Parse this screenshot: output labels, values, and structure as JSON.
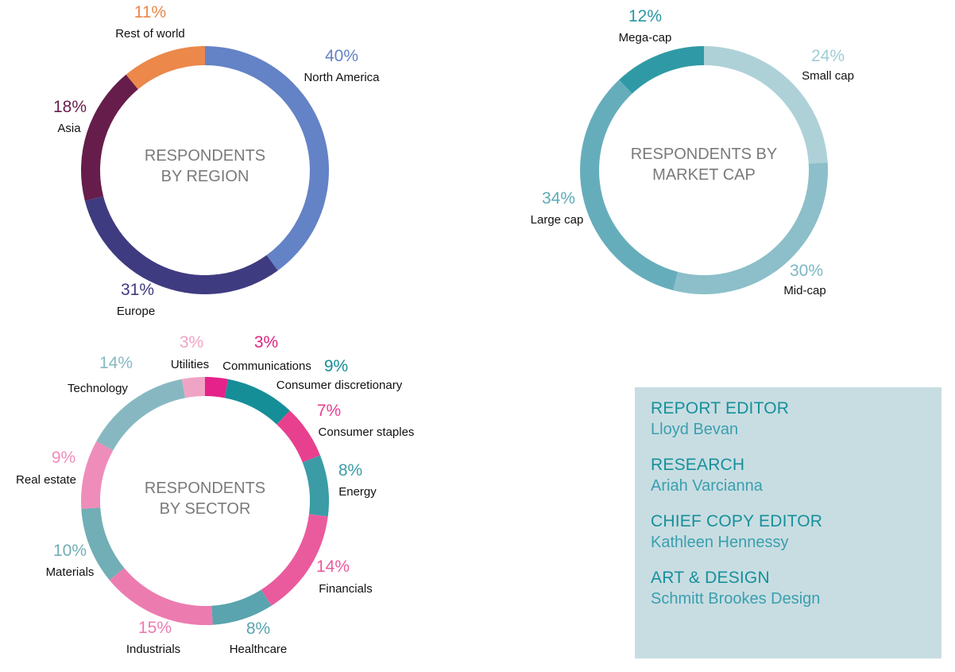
{
  "chart_data": [
    {
      "type": "pie",
      "title": "RESPONDENTS BY REGION",
      "title_lines": [
        "RESPONDENTS",
        "BY REGION"
      ],
      "slices": [
        {
          "label": "North America",
          "value": 40,
          "value_label": "40%",
          "color": "#6482c6",
          "label_color": "#6482c6"
        },
        {
          "label": "Europe",
          "value": 31,
          "value_label": "31%",
          "color": "#3f3b80",
          "label_color": "#3f3b80"
        },
        {
          "label": "Asia",
          "value": 18,
          "value_label": "18%",
          "color": "#661d4b",
          "label_color": "#661d4b"
        },
        {
          "label": "Rest of world",
          "value": 11,
          "value_label": "11%",
          "color": "#eb884a",
          "label_color": "#eb884a"
        }
      ]
    },
    {
      "type": "pie",
      "title": "RESPONDENTS BY MARKET CAP",
      "title_lines": [
        "RESPONDENTS BY",
        "MARKET CAP"
      ],
      "slices": [
        {
          "label": "Small cap",
          "value": 24,
          "value_label": "24%",
          "color": "#aed1d8",
          "label_color": "#9fcdd6"
        },
        {
          "label": "Mid-cap",
          "value": 30,
          "value_label": "30%",
          "color": "#8cbfc9",
          "label_color": "#7ab7c4"
        },
        {
          "label": "Large cap",
          "value": 34,
          "value_label": "34%",
          "color": "#66adbb",
          "label_color": "#5eaab8"
        },
        {
          "label": "Mega-cap",
          "value": 12,
          "value_label": "12%",
          "color": "#2f9aa5",
          "label_color": "#2a97a3"
        }
      ]
    },
    {
      "type": "pie",
      "title": "RESPONDENTS BY SECTOR",
      "title_lines": [
        "RESPONDENTS",
        "BY SECTOR"
      ],
      "slices": [
        {
          "label": "Communications",
          "value": 3,
          "value_label": "3%",
          "color": "#e5228a",
          "label_color": "#e0237f"
        },
        {
          "label": "Consumer discretionary",
          "value": 9,
          "value_label": "9%",
          "color": "#168e98",
          "label_color": "#168e98"
        },
        {
          "label": "Consumer staples",
          "value": 7,
          "value_label": "7%",
          "color": "#e7408f",
          "label_color": "#e7408f"
        },
        {
          "label": "Energy",
          "value": 8,
          "value_label": "8%",
          "color": "#3b9ca6",
          "label_color": "#3b9ca6"
        },
        {
          "label": "Financials",
          "value": 14,
          "value_label": "14%",
          "color": "#ea5b9e",
          "label_color": "#ea5b9e"
        },
        {
          "label": "Healthcare",
          "value": 8,
          "value_label": "8%",
          "color": "#59a4ae",
          "label_color": "#59a4ae"
        },
        {
          "label": "Industrials",
          "value": 15,
          "value_label": "15%",
          "color": "#ec7bb0",
          "label_color": "#ec7bb0"
        },
        {
          "label": "Materials",
          "value": 10,
          "value_label": "10%",
          "color": "#72aeb6",
          "label_color": "#72aeb6"
        },
        {
          "label": "Real estate",
          "value": 9,
          "value_label": "9%",
          "color": "#ee8dba",
          "label_color": "#ee8dba"
        },
        {
          "label": "Technology",
          "value": 14,
          "value_label": "14%",
          "color": "#87b8c1",
          "label_color": "#87b8c1"
        },
        {
          "label": "Utilities",
          "value": 3,
          "value_label": "3%",
          "color": "#f0a4c5",
          "label_color": "#f0a4c5"
        }
      ]
    }
  ],
  "credits": [
    {
      "heading": "REPORT EDITOR",
      "name": "Lloyd Bevan"
    },
    {
      "heading": "RESEARCH",
      "name": "Ariah Varcianna"
    },
    {
      "heading": "CHIEF COPY EDITOR",
      "name": "Kathleen Hennessy"
    },
    {
      "heading": "ART & DESIGN",
      "name": "Schmitt Brookes Design"
    }
  ],
  "colors": {
    "center_title": "#7a7a7a",
    "label_text": "#111111",
    "credits_background": "#c8dde2"
  }
}
